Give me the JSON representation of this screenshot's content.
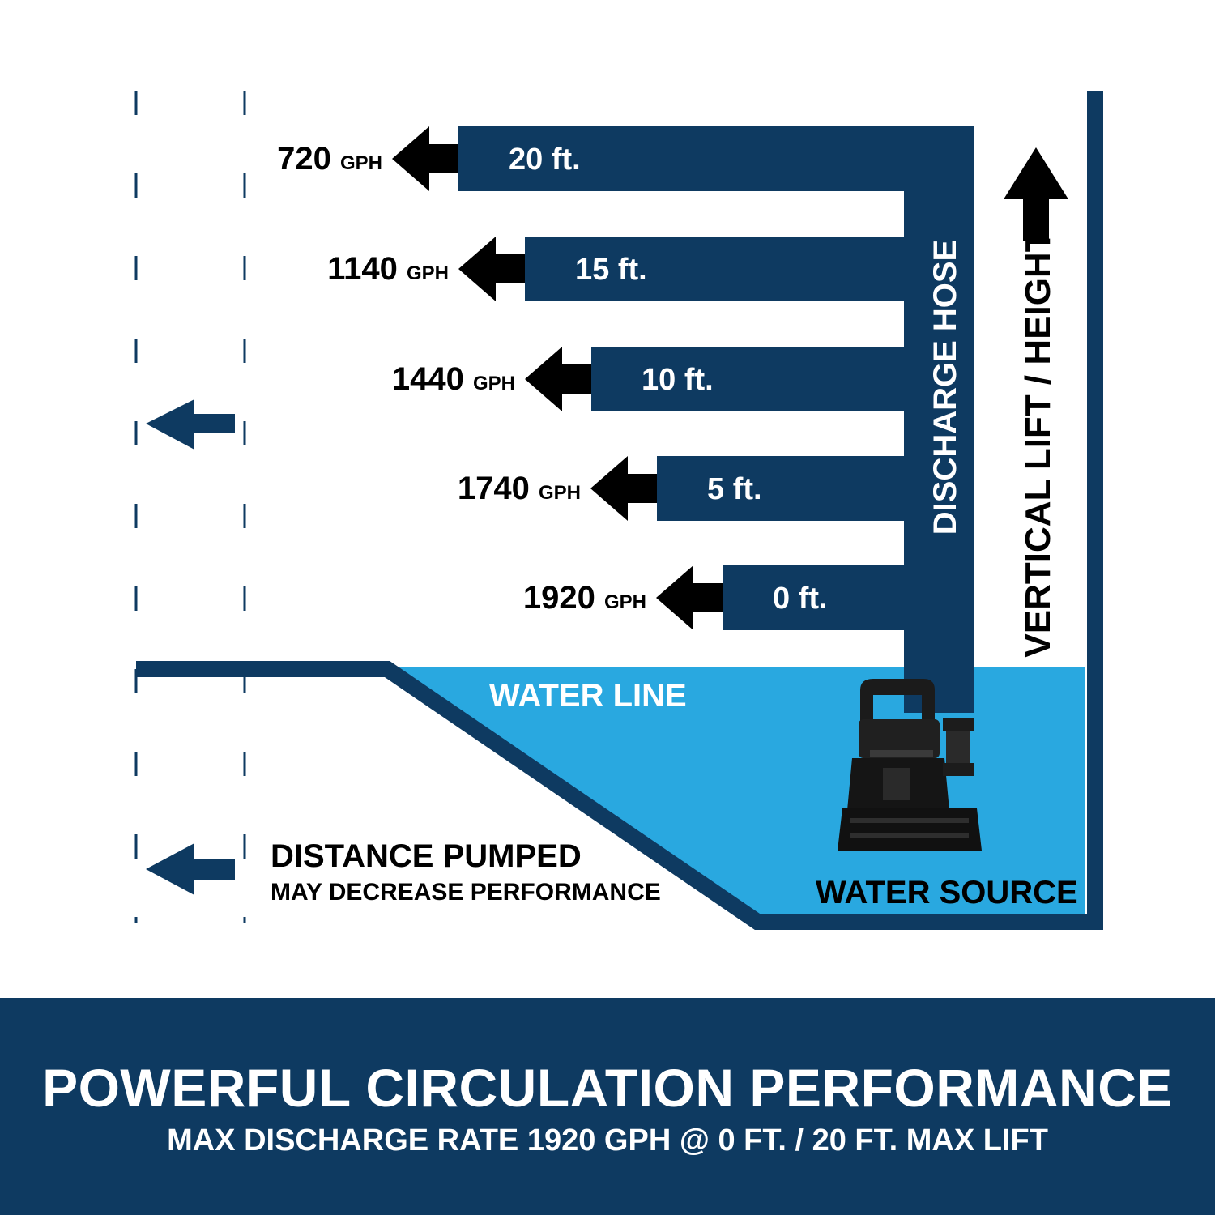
{
  "colors": {
    "navy": "#0e3a61",
    "water": "#29a8e0",
    "black": "#000000",
    "white": "#ffffff"
  },
  "lift_levels": [
    {
      "height": "20 ft.",
      "rate_value": "720",
      "rate_unit": "GPH"
    },
    {
      "height": "15 ft.",
      "rate_value": "1140",
      "rate_unit": "GPH"
    },
    {
      "height": "10 ft.",
      "rate_value": "1440",
      "rate_unit": "GPH"
    },
    {
      "height": "5 ft.",
      "rate_value": "1740",
      "rate_unit": "GPH"
    },
    {
      "height": "0 ft.",
      "rate_value": "1920",
      "rate_unit": "GPH"
    }
  ],
  "labels": {
    "discharge_hose": "DISCHARGE HOSE",
    "vertical_lift": "VERTICAL LIFT / HEIGHT",
    "water_line": "WATER LINE",
    "water_source": "WATER SOURCE",
    "distance_title": "DISTANCE PUMPED",
    "distance_subtitle": "MAY DECREASE PERFORMANCE"
  },
  "banner": {
    "title": "POWERFUL CIRCULATION PERFORMANCE",
    "subtitle": "MAX DISCHARGE RATE 1920 GPH @ 0 FT. / 20 FT. MAX LIFT"
  },
  "icons": {
    "pump": "submersible-pump-icon",
    "flow_arrow": "arrow-left-icon",
    "lift_arrow": "arrow-up-icon"
  }
}
